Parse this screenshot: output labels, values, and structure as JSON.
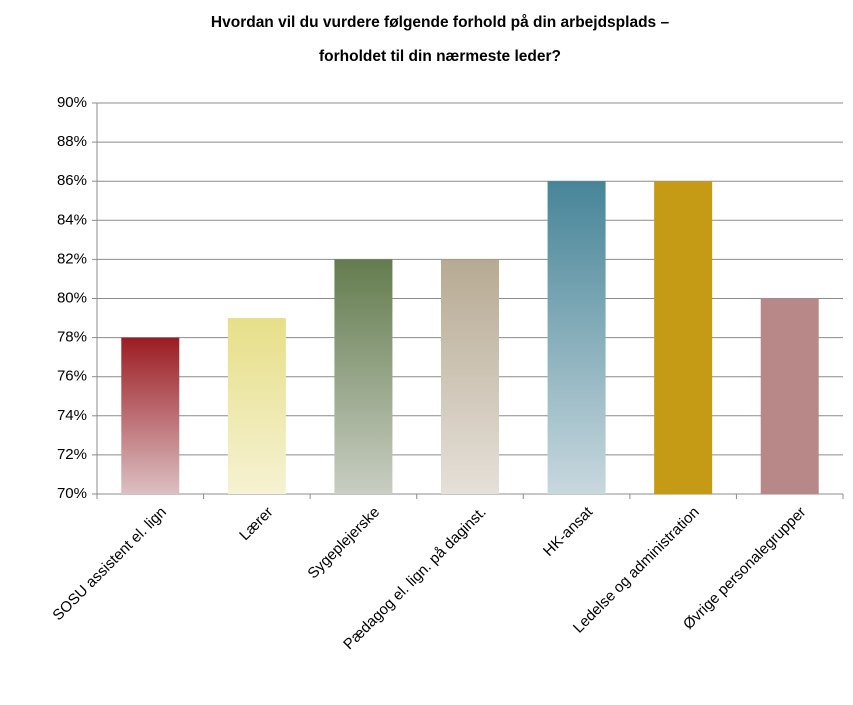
{
  "chart_data": {
    "type": "bar",
    "title": [
      "Hvordan vil du vurdere følgende forhold på din arbejdsplads –",
      "forholdet til din nærmeste leder?"
    ],
    "categories": [
      "SOSU assistent el. lign",
      "Lærer",
      "Sygeplejerske",
      "Pædagog el. lign. på daginst.",
      "HK-ansat",
      "Ledelse og administration",
      "Øvrige personalegrupper"
    ],
    "values": [
      78,
      79,
      82,
      82,
      86,
      86,
      80
    ],
    "colors": [
      [
        "#9b1c22",
        "#dcc0c3"
      ],
      [
        "#e6df88",
        "#f6f2d2"
      ],
      [
        "#637c4e",
        "#c8cec2"
      ],
      [
        "#b7aa93",
        "#e5e0d8"
      ],
      [
        "#468598",
        "#c8d8de"
      ],
      [
        "#c59a14",
        "#c59a14"
      ],
      [
        "#b88788",
        "#b88788"
      ]
    ],
    "ylim": [
      70,
      90
    ],
    "yticks": [
      {
        "value": 70,
        "label": "70%"
      },
      {
        "value": 72,
        "label": "72%"
      },
      {
        "value": 74,
        "label": "74%"
      },
      {
        "value": 76,
        "label": "76%"
      },
      {
        "value": 78,
        "label": "78%"
      },
      {
        "value": 80,
        "label": "80%"
      },
      {
        "value": 82,
        "label": "82%"
      },
      {
        "value": 84,
        "label": "84%"
      },
      {
        "value": 86,
        "label": "86%"
      },
      {
        "value": 88,
        "label": "88%"
      },
      {
        "value": 90,
        "label": "90%"
      }
    ],
    "grid": true
  }
}
